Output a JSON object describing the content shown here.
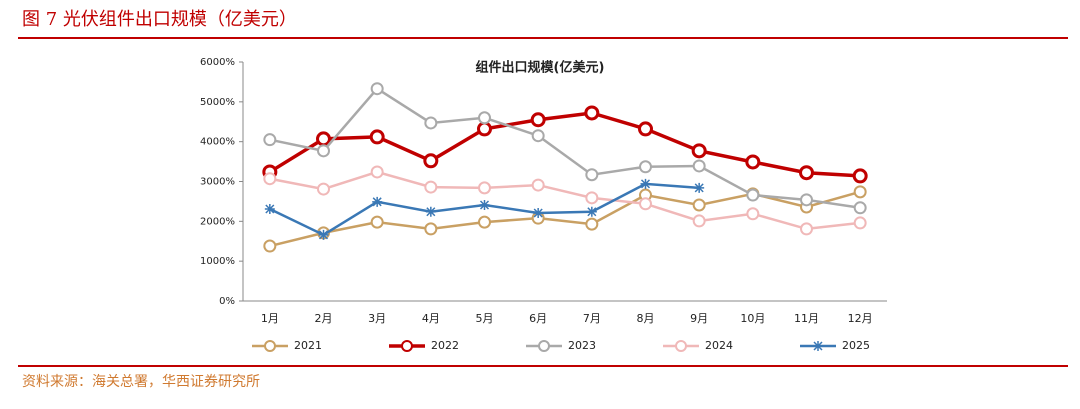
{
  "figure_title": "图 7 光伏组件出口规模（亿美元）",
  "source": "资料来源：海关总署，华西证券研究所",
  "chart_data": {
    "type": "line",
    "title": "组件出口规模(亿美元)",
    "categories": [
      "1月",
      "2月",
      "3月",
      "4月",
      "5月",
      "6月",
      "7月",
      "8月",
      "9月",
      "10月",
      "11月",
      "12月"
    ],
    "ylim": [
      0,
      6000
    ],
    "yticks": [
      {
        "value": 0,
        "label": "0%"
      },
      {
        "value": 1000,
        "label": "1000%"
      },
      {
        "value": 2000,
        "label": "2000%"
      },
      {
        "value": 3000,
        "label": "3000%"
      },
      {
        "value": 4000,
        "label": "4000%"
      },
      {
        "value": 5000,
        "label": "5000%"
      },
      {
        "value": 6000,
        "label": "6000%"
      }
    ],
    "grid": false,
    "legend": "bottom",
    "series": [
      {
        "name": "2021",
        "color": "#c9a063",
        "marker": "circle",
        "values": [
          1380,
          1710,
          1980,
          1810,
          1980,
          2080,
          1930,
          2660,
          2410,
          2690,
          2360,
          2740
        ]
      },
      {
        "name": "2022",
        "color": "#c00000",
        "marker": "circle",
        "values": [
          3240,
          4070,
          4120,
          3520,
          4320,
          4550,
          4720,
          4320,
          3770,
          3490,
          3220,
          3140
        ]
      },
      {
        "name": "2023",
        "color": "#a9a9a9",
        "marker": "circle",
        "values": [
          4050,
          3770,
          5330,
          4470,
          4600,
          4150,
          3170,
          3370,
          3390,
          2660,
          2540,
          2340
        ]
      },
      {
        "name": "2024",
        "color": "#f0b8b8",
        "marker": "circle",
        "values": [
          3070,
          2810,
          3240,
          2860,
          2840,
          2910,
          2590,
          2440,
          2010,
          2190,
          1810,
          1960
        ]
      },
      {
        "name": "2025",
        "color": "#3a78b5",
        "marker": "star",
        "values": [
          2310,
          1660,
          2490,
          2240,
          2410,
          2210,
          2240,
          2940,
          2840,
          null,
          null,
          null
        ]
      }
    ]
  }
}
